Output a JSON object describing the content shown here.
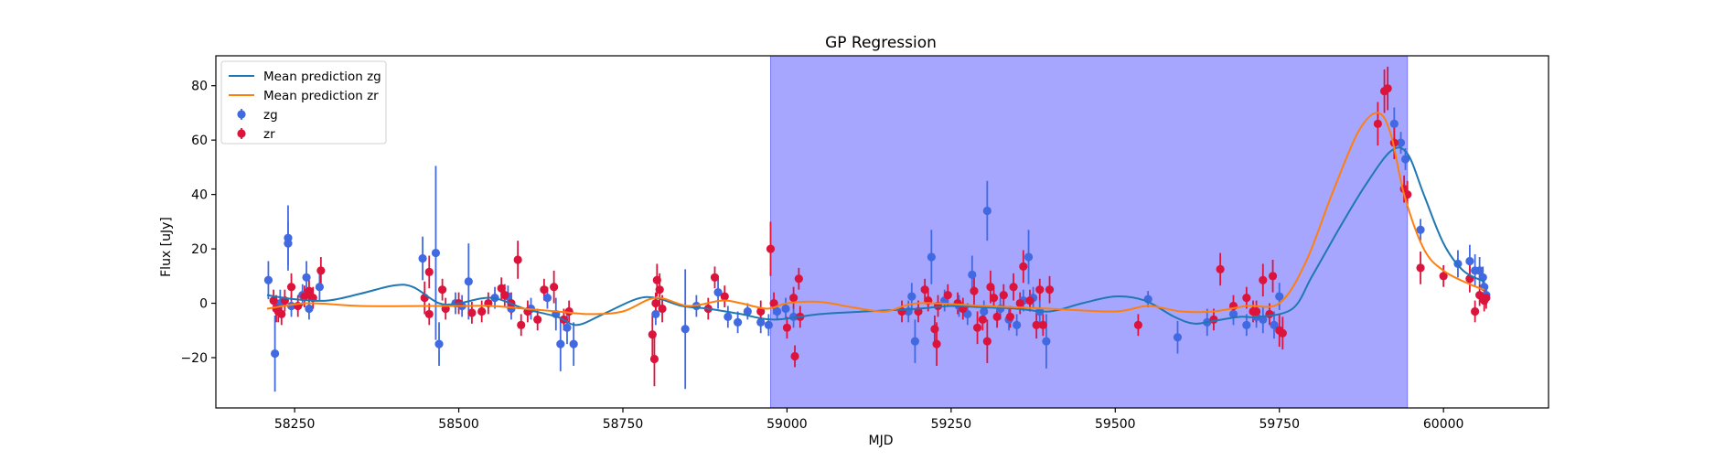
{
  "chart_data": {
    "type": "scatter",
    "title": "GP Regression",
    "xlabel": "MJD",
    "ylabel": "Flux [uJy]",
    "xlim": [
      58130,
      60160
    ],
    "ylim": [
      -38.5,
      91
    ],
    "xticks": [
      58250,
      58500,
      58750,
      59000,
      59250,
      59500,
      59750,
      60000
    ],
    "yticks": [
      -20,
      0,
      20,
      40,
      60,
      80
    ],
    "grid": false,
    "legend_position": "top-left",
    "shaded_region": {
      "x_start": 58975,
      "x_end": 59945,
      "color": "#a6a6ff"
    },
    "colors": {
      "zg": "#4169e1",
      "zr": "#dc143c",
      "mean_zg": "#1f77b4",
      "mean_zr": "#ff7f0e"
    },
    "legend": [
      "Mean prediction zg",
      "Mean prediction zr",
      "zg",
      "zr"
    ],
    "series": [
      {
        "name": "zg",
        "kind": "points",
        "points": [
          [
            58210,
            8.5,
            7
          ],
          [
            58220,
            -18.5,
            14
          ],
          [
            58228,
            0,
            5
          ],
          [
            58240,
            24,
            12
          ],
          [
            58240,
            22,
            8
          ],
          [
            58245,
            -1,
            4
          ],
          [
            58262,
            3,
            4
          ],
          [
            58268,
            9.5,
            6
          ],
          [
            58272,
            -2,
            4
          ],
          [
            58288,
            6,
            5
          ],
          [
            58445,
            16.5,
            8
          ],
          [
            58465,
            18.5,
            32
          ],
          [
            58470,
            -15,
            8
          ],
          [
            58495,
            0,
            4
          ],
          [
            58505,
            -1,
            4
          ],
          [
            58515,
            8,
            14
          ],
          [
            58555,
            2,
            4
          ],
          [
            58575,
            2.5,
            4
          ],
          [
            58580,
            -2,
            4
          ],
          [
            58610,
            -2,
            4
          ],
          [
            58635,
            2,
            4
          ],
          [
            58648,
            -4,
            6
          ],
          [
            58655,
            -15,
            10
          ],
          [
            58665,
            -9,
            6
          ],
          [
            58675,
            -15,
            8
          ],
          [
            58800,
            -4,
            4
          ],
          [
            58845,
            -9.5,
            22
          ],
          [
            58862,
            -1,
            4
          ],
          [
            58895,
            4,
            6
          ],
          [
            58910,
            -5,
            4
          ],
          [
            58925,
            -7,
            4
          ],
          [
            58940,
            -3,
            3
          ],
          [
            58960,
            -7,
            4
          ],
          [
            58972,
            -8,
            4
          ],
          [
            58985,
            -3,
            3
          ],
          [
            58998,
            -2,
            4
          ],
          [
            59010,
            -5,
            4
          ],
          [
            59185,
            -3,
            4
          ],
          [
            59190,
            2.5,
            5
          ],
          [
            59195,
            -14,
            8
          ],
          [
            59220,
            17,
            10
          ],
          [
            59240,
            1,
            4
          ],
          [
            59262,
            -1,
            4
          ],
          [
            59275,
            -4,
            4
          ],
          [
            59282,
            10.5,
            7
          ],
          [
            59300,
            -3,
            4
          ],
          [
            59305,
            34,
            11
          ],
          [
            59325,
            -2,
            4
          ],
          [
            59338,
            -6,
            4
          ],
          [
            59350,
            -8,
            4
          ],
          [
            59360,
            1,
            4
          ],
          [
            59368,
            17,
            10
          ],
          [
            59375,
            2,
            4
          ],
          [
            59385,
            -3,
            4
          ],
          [
            59395,
            -14,
            10
          ],
          [
            59550,
            1.5,
            3
          ],
          [
            59595,
            -12.5,
            6
          ],
          [
            59640,
            -7,
            5
          ],
          [
            59680,
            -4,
            4
          ],
          [
            59700,
            -8,
            4
          ],
          [
            59715,
            -5,
            4
          ],
          [
            59725,
            -6,
            5
          ],
          [
            59742,
            -8,
            5
          ],
          [
            59750,
            2.5,
            5
          ],
          [
            59925,
            66,
            6
          ],
          [
            59935,
            59,
            4
          ],
          [
            59942,
            53,
            4
          ],
          [
            59965,
            27,
            4
          ],
          [
            60022,
            14.5,
            5
          ],
          [
            60040,
            15.5,
            6
          ],
          [
            60048,
            12,
            6
          ],
          [
            60055,
            12,
            5
          ],
          [
            60060,
            9.5,
            4
          ],
          [
            60062,
            6,
            4
          ],
          [
            60065,
            3,
            4
          ]
        ]
      },
      {
        "name": "zr",
        "kind": "points",
        "points": [
          [
            58218,
            1,
            4
          ],
          [
            58222,
            -2,
            5
          ],
          [
            58225,
            -3,
            4
          ],
          [
            58230,
            -4,
            4
          ],
          [
            58235,
            1,
            4
          ],
          [
            58245,
            6,
            5
          ],
          [
            58255,
            -1,
            4
          ],
          [
            58265,
            2.5,
            4
          ],
          [
            58272,
            4.5,
            4
          ],
          [
            58278,
            2,
            4
          ],
          [
            58290,
            12,
            5
          ],
          [
            58448,
            2,
            6
          ],
          [
            58455,
            -4,
            4
          ],
          [
            58455,
            11.5,
            6
          ],
          [
            58475,
            5,
            4
          ],
          [
            58480,
            -2,
            4
          ],
          [
            58500,
            0,
            4
          ],
          [
            58520,
            -3.5,
            4
          ],
          [
            58535,
            -3,
            4
          ],
          [
            58545,
            0,
            4
          ],
          [
            58565,
            5.5,
            4
          ],
          [
            58570,
            3,
            4
          ],
          [
            58580,
            0,
            4
          ],
          [
            58590,
            16,
            7
          ],
          [
            58595,
            -8,
            4
          ],
          [
            58605,
            -3,
            4
          ],
          [
            58620,
            -6,
            4
          ],
          [
            58630,
            5,
            4
          ],
          [
            58645,
            6,
            6
          ],
          [
            58660,
            -6,
            4
          ],
          [
            58668,
            -3,
            4
          ],
          [
            58795,
            -11.5,
            8
          ],
          [
            58798,
            -20.5,
            10
          ],
          [
            58800,
            0,
            4
          ],
          [
            58802,
            8.5,
            6
          ],
          [
            58806,
            5,
            6
          ],
          [
            58810,
            -2,
            5
          ],
          [
            58880,
            -2,
            4
          ],
          [
            58890,
            9.5,
            4
          ],
          [
            58905,
            2.5,
            4
          ],
          [
            58960,
            -3,
            4
          ],
          [
            58975,
            20,
            10
          ],
          [
            58980,
            0,
            4
          ],
          [
            59000,
            -9,
            4
          ],
          [
            59010,
            2,
            4
          ],
          [
            59012,
            -19.5,
            4
          ],
          [
            59018,
            9,
            4
          ],
          [
            59020,
            -5,
            4
          ],
          [
            59175,
            -3,
            4
          ],
          [
            59200,
            -3,
            4
          ],
          [
            59210,
            5,
            4
          ],
          [
            59215,
            1,
            4
          ],
          [
            59225,
            -9.5,
            5
          ],
          [
            59228,
            -15,
            8
          ],
          [
            59230,
            -1,
            4
          ],
          [
            59245,
            3,
            4
          ],
          [
            59260,
            0,
            4
          ],
          [
            59268,
            -2,
            4
          ],
          [
            59285,
            4.5,
            5
          ],
          [
            59290,
            -9,
            6
          ],
          [
            59298,
            -6,
            4
          ],
          [
            59305,
            -14,
            8
          ],
          [
            59310,
            6,
            6
          ],
          [
            59315,
            2,
            4
          ],
          [
            59320,
            -5,
            4
          ],
          [
            59330,
            3,
            4
          ],
          [
            59340,
            -5,
            4
          ],
          [
            59345,
            6,
            5
          ],
          [
            59355,
            0,
            4
          ],
          [
            59360,
            13.5,
            6
          ],
          [
            59370,
            1,
            4
          ],
          [
            59380,
            -8,
            5
          ],
          [
            59385,
            5,
            4
          ],
          [
            59390,
            -8,
            4
          ],
          [
            59400,
            5,
            5
          ],
          [
            59535,
            -8,
            4
          ],
          [
            59650,
            -6,
            4
          ],
          [
            59660,
            12.5,
            6
          ],
          [
            59680,
            -1,
            4
          ],
          [
            59700,
            2,
            4
          ],
          [
            59710,
            -3,
            4
          ],
          [
            59715,
            -3,
            4
          ],
          [
            59725,
            8.5,
            6
          ],
          [
            59735,
            -4,
            4
          ],
          [
            59740,
            10,
            6
          ],
          [
            59750,
            -10,
            6
          ],
          [
            59755,
            -11,
            6
          ],
          [
            59900,
            66,
            8
          ],
          [
            59910,
            78,
            8
          ],
          [
            59915,
            79,
            8
          ],
          [
            59925,
            59,
            6
          ],
          [
            59940,
            42,
            5
          ],
          [
            59945,
            40,
            5
          ],
          [
            59965,
            13,
            6
          ],
          [
            60000,
            10,
            4
          ],
          [
            60040,
            9,
            5
          ],
          [
            60048,
            -3,
            4
          ],
          [
            60055,
            3,
            4
          ],
          [
            60062,
            1,
            4
          ],
          [
            60065,
            2,
            4
          ]
        ]
      },
      {
        "name": "Mean prediction zg",
        "kind": "line",
        "points": [
          [
            58208,
            3
          ],
          [
            58250,
            1.5
          ],
          [
            58300,
            1
          ],
          [
            58350,
            3.5
          ],
          [
            58400,
            6.5
          ],
          [
            58430,
            6
          ],
          [
            58470,
            0
          ],
          [
            58500,
            0
          ],
          [
            58550,
            2
          ],
          [
            58600,
            -2
          ],
          [
            58650,
            -5
          ],
          [
            58680,
            -8
          ],
          [
            58720,
            -4
          ],
          [
            58770,
            1.5
          ],
          [
            58800,
            2
          ],
          [
            58840,
            -1
          ],
          [
            58880,
            -2
          ],
          [
            58930,
            -4
          ],
          [
            58980,
            -6
          ],
          [
            59050,
            -4
          ],
          [
            59120,
            -3
          ],
          [
            59200,
            -2
          ],
          [
            59250,
            -1
          ],
          [
            59300,
            -1.5
          ],
          [
            59350,
            -2
          ],
          [
            59400,
            -3
          ],
          [
            59450,
            0
          ],
          [
            59500,
            2.5
          ],
          [
            59545,
            1
          ],
          [
            59590,
            -5
          ],
          [
            59620,
            -7.5
          ],
          [
            59650,
            -6.5
          ],
          [
            59690,
            -5
          ],
          [
            59720,
            -5
          ],
          [
            59770,
            -2
          ],
          [
            59800,
            10
          ],
          [
            59840,
            27
          ],
          [
            59880,
            43
          ],
          [
            59920,
            56
          ],
          [
            59945,
            55
          ],
          [
            59970,
            40
          ],
          [
            60000,
            22
          ],
          [
            60030,
            12
          ],
          [
            60062,
            8
          ]
        ]
      },
      {
        "name": "Mean prediction zr",
        "kind": "line",
        "points": [
          [
            58208,
            -2
          ],
          [
            58270,
            0
          ],
          [
            58350,
            -1
          ],
          [
            58450,
            -1
          ],
          [
            58500,
            -1
          ],
          [
            58550,
            -1
          ],
          [
            58600,
            -2
          ],
          [
            58650,
            -3
          ],
          [
            58700,
            -4
          ],
          [
            58750,
            -3
          ],
          [
            58800,
            2
          ],
          [
            58850,
            -1
          ],
          [
            58900,
            1
          ],
          [
            58930,
            0
          ],
          [
            58970,
            -2
          ],
          [
            59000,
            0
          ],
          [
            59050,
            0.5
          ],
          [
            59100,
            -1.5
          ],
          [
            59150,
            -3
          ],
          [
            59200,
            0
          ],
          [
            59300,
            -1
          ],
          [
            59400,
            -2
          ],
          [
            59500,
            -3
          ],
          [
            59550,
            -1
          ],
          [
            59600,
            -3
          ],
          [
            59650,
            -3
          ],
          [
            59700,
            -1
          ],
          [
            59750,
            0
          ],
          [
            59790,
            15
          ],
          [
            59830,
            40
          ],
          [
            59870,
            63
          ],
          [
            59900,
            70
          ],
          [
            59920,
            62
          ],
          [
            59940,
            40
          ],
          [
            59970,
            20
          ],
          [
            60000,
            12
          ],
          [
            60040,
            7
          ],
          [
            60062,
            5
          ]
        ]
      }
    ]
  }
}
